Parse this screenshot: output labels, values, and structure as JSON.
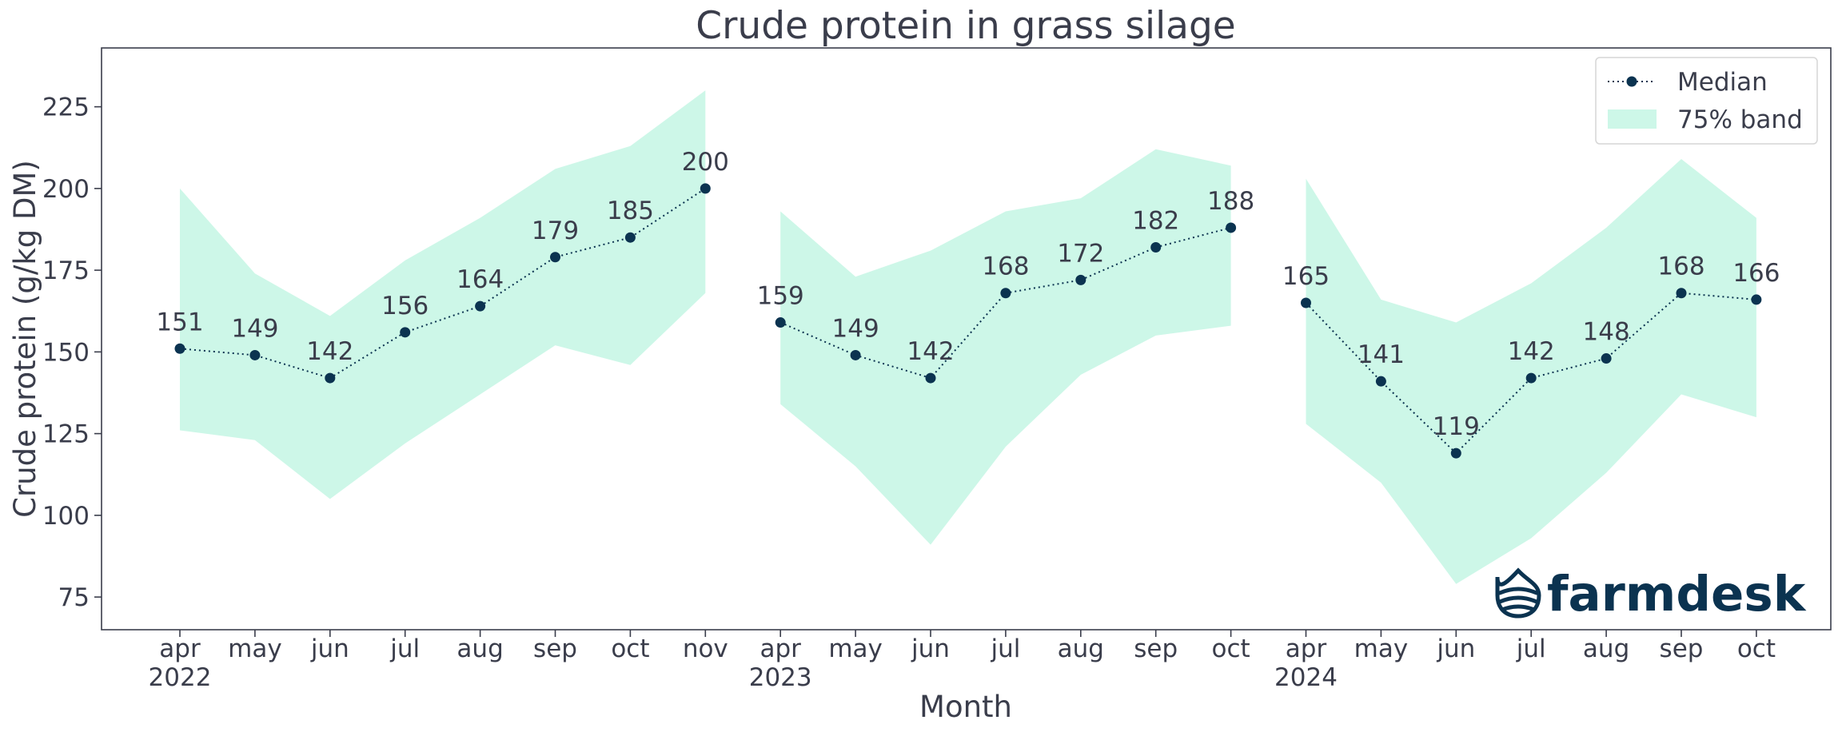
{
  "chart_data": {
    "type": "line",
    "title": "Crude protein in grass silage",
    "xlabel": "Month",
    "ylabel": "Crude protein (g/kg DM)",
    "ylim": [
      65,
      243
    ],
    "yticks": [
      75,
      100,
      125,
      150,
      175,
      200,
      225
    ],
    "grid": false,
    "legend_position": "top-right",
    "colors": {
      "median": "#0b3350",
      "band": "#cdf7e8",
      "text": "#3a3d4b",
      "frame": "#3a3d4b"
    },
    "legend": {
      "median": "Median",
      "band": "75% band"
    },
    "segments": [
      {
        "year": "2022",
        "months": [
          "apr",
          "may",
          "jun",
          "jul",
          "aug",
          "sep",
          "oct",
          "nov"
        ],
        "median": [
          151,
          149,
          142,
          156,
          164,
          179,
          185,
          200
        ],
        "band_low": [
          126,
          123,
          105,
          122,
          137,
          152,
          146,
          168
        ],
        "band_high": [
          200,
          174,
          161,
          178,
          191,
          206,
          213,
          230
        ]
      },
      {
        "year": "2023",
        "months": [
          "apr",
          "may",
          "jun",
          "jul",
          "aug",
          "sep",
          "oct"
        ],
        "median": [
          159,
          149,
          142,
          168,
          172,
          182,
          188
        ],
        "band_low": [
          134,
          115,
          91,
          121,
          143,
          155,
          158
        ],
        "band_high": [
          193,
          173,
          181,
          193,
          197,
          212,
          207
        ]
      },
      {
        "year": "2024",
        "months": [
          "apr",
          "may",
          "jun",
          "jul",
          "aug",
          "sep",
          "oct"
        ],
        "median": [
          165,
          141,
          119,
          142,
          148,
          168,
          166
        ],
        "band_low": [
          128,
          110,
          79,
          93,
          113,
          137,
          130
        ],
        "band_high": [
          203,
          166,
          159,
          171,
          188,
          209,
          191
        ]
      }
    ]
  },
  "logo": {
    "text": "farmdesk",
    "icon": "farmdesk-drop-icon"
  }
}
